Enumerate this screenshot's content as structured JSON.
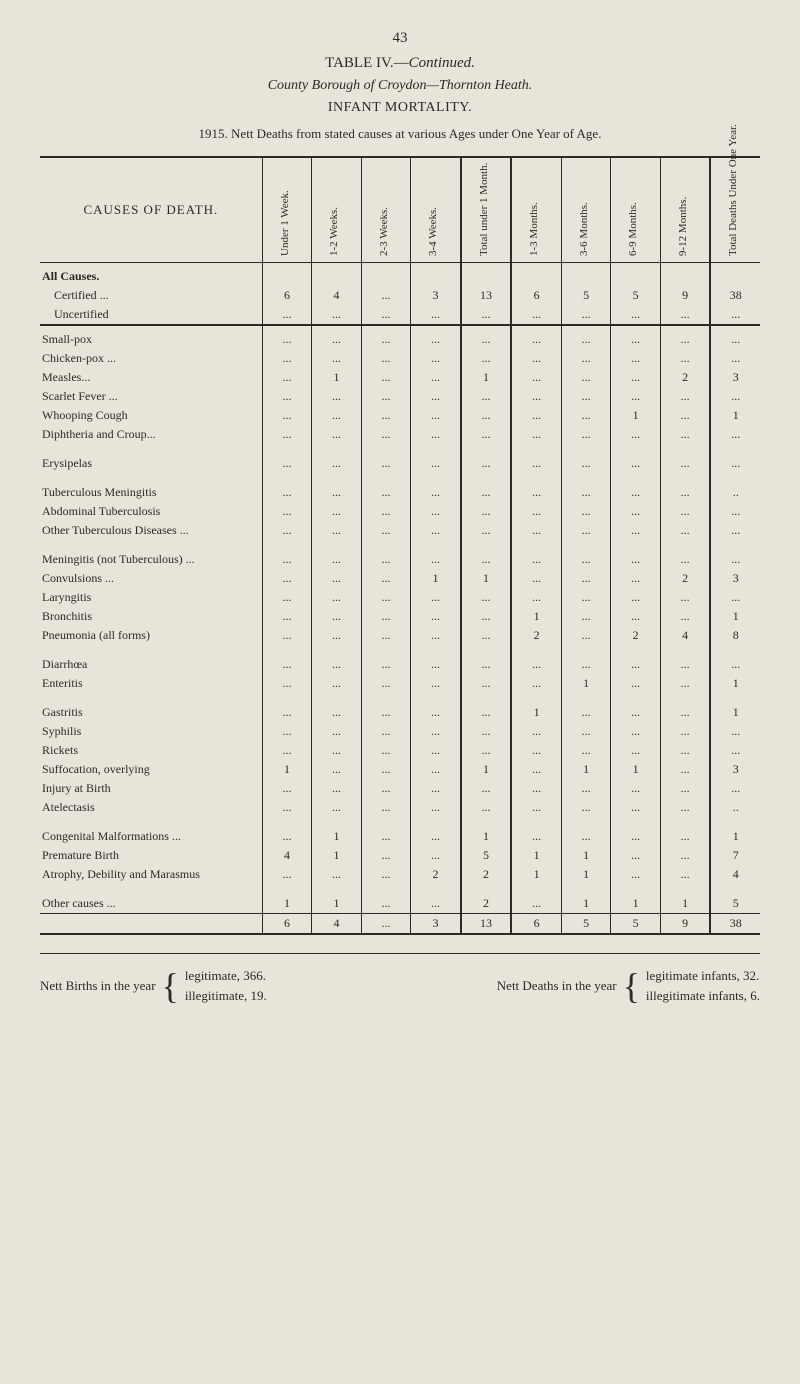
{
  "page_number": "43",
  "table_title_prefix": "TABLE IV.—",
  "table_title_suffix": "Continued.",
  "subtitle_italic": "County Borough of Croydon—Thornton Heath.",
  "subtitle": "INFANT MORTALITY.",
  "year_line": "1915. Nett Deaths from stated causes at various Ages under One Year of Age.",
  "colors": {
    "background": "#e8e4d9",
    "text": "#2a2a28",
    "rule": "#2a2a28"
  },
  "headers": {
    "causes": "CAUSES OF DEATH.",
    "cols": [
      "Under 1 Week.",
      "1-2 Weeks.",
      "2-3 Weeks.",
      "3-4 Weeks.",
      "Total under 1 Month.",
      "1-3 Months.",
      "3-6 Months.",
      "6-9 Months.",
      "9-12 Months.",
      "Total Deaths Under One Year."
    ]
  },
  "rows": [
    {
      "type": "section",
      "label": "All Causes."
    },
    {
      "type": "indent",
      "label": "Certified ...",
      "vals": [
        "6",
        "4",
        "...",
        "3",
        "13",
        "6",
        "5",
        "5",
        "9",
        "38"
      ]
    },
    {
      "type": "indent",
      "label": "Uncertified",
      "vals": [
        "...",
        "...",
        "...",
        "...",
        "...",
        "...",
        "...",
        "...",
        "...",
        "..."
      ]
    },
    {
      "type": "rule",
      "style": "thick"
    },
    {
      "type": "data",
      "label": "Small-pox",
      "vals": [
        "...",
        "...",
        "...",
        "...",
        "...",
        "...",
        "...",
        "...",
        "...",
        "..."
      ]
    },
    {
      "type": "data",
      "label": "Chicken-pox ...",
      "vals": [
        "...",
        "...",
        "...",
        "...",
        "...",
        "...",
        "...",
        "...",
        "...",
        "..."
      ]
    },
    {
      "type": "data",
      "label": "Measles...",
      "vals": [
        "...",
        "1",
        "...",
        "...",
        "1",
        "...",
        "...",
        "...",
        "2",
        "3"
      ]
    },
    {
      "type": "data",
      "label": "Scarlet Fever ...",
      "vals": [
        "...",
        "...",
        "...",
        "...",
        "...",
        "...",
        "...",
        "...",
        "...",
        "..."
      ]
    },
    {
      "type": "data",
      "label": "Whooping Cough",
      "vals": [
        "...",
        "...",
        "...",
        "...",
        "...",
        "...",
        "...",
        "1",
        "...",
        "1"
      ]
    },
    {
      "type": "data",
      "label": "Diphtheria and Croup...",
      "vals": [
        "...",
        "...",
        "...",
        "...",
        "...",
        "...",
        "...",
        "...",
        "...",
        "..."
      ]
    },
    {
      "type": "spacer"
    },
    {
      "type": "data",
      "label": "Erysipelas",
      "vals": [
        "...",
        "...",
        "...",
        "...",
        "...",
        "...",
        "...",
        "...",
        "...",
        "..."
      ]
    },
    {
      "type": "spacer"
    },
    {
      "type": "data",
      "label": "Tuberculous Meningitis",
      "vals": [
        "...",
        "...",
        "...",
        "...",
        "...",
        "...",
        "...",
        "...",
        "...",
        ".."
      ]
    },
    {
      "type": "data",
      "label": "Abdominal Tuberculosis",
      "vals": [
        "...",
        "...",
        "...",
        "...",
        "...",
        "...",
        "...",
        "...",
        "...",
        "..."
      ]
    },
    {
      "type": "data",
      "label": "Other Tuberculous Diseases ...",
      "vals": [
        "...",
        "...",
        "...",
        "...",
        "...",
        "...",
        "...",
        "...",
        "...",
        "..."
      ]
    },
    {
      "type": "spacer"
    },
    {
      "type": "data",
      "label": "Meningitis (not Tuberculous) ...",
      "vals": [
        "...",
        "...",
        "...",
        "...",
        "...",
        "...",
        "...",
        "...",
        "...",
        "..."
      ]
    },
    {
      "type": "data",
      "label": "Convulsions ...",
      "vals": [
        "...",
        "...",
        "...",
        "1",
        "1",
        "...",
        "...",
        "...",
        "2",
        "3"
      ]
    },
    {
      "type": "data",
      "label": "Laryngitis",
      "vals": [
        "...",
        "...",
        "...",
        "...",
        "...",
        "...",
        "...",
        "...",
        "...",
        "..."
      ]
    },
    {
      "type": "data",
      "label": "Bronchitis",
      "vals": [
        "...",
        "...",
        "...",
        "...",
        "...",
        "1",
        "...",
        "...",
        "...",
        "1"
      ]
    },
    {
      "type": "data",
      "label": "Pneumonia (all forms)",
      "vals": [
        "...",
        "...",
        "...",
        "...",
        "...",
        "2",
        "...",
        "2",
        "4",
        "8"
      ]
    },
    {
      "type": "spacer"
    },
    {
      "type": "data",
      "label": "Diarrhœa",
      "vals": [
        "...",
        "...",
        "...",
        "...",
        "...",
        "...",
        "...",
        "...",
        "...",
        "..."
      ]
    },
    {
      "type": "data",
      "label": "Enteritis",
      "vals": [
        "...",
        "...",
        "...",
        "...",
        "...",
        "...",
        "1",
        "...",
        "...",
        "1"
      ]
    },
    {
      "type": "spacer"
    },
    {
      "type": "data",
      "label": "Gastritis",
      "vals": [
        "...",
        "...",
        "...",
        "...",
        "...",
        "1",
        "...",
        "...",
        "...",
        "1"
      ]
    },
    {
      "type": "data",
      "label": "Syphilis",
      "vals": [
        "...",
        "...",
        "...",
        "...",
        "...",
        "...",
        "...",
        "...",
        "...",
        "..."
      ]
    },
    {
      "type": "data",
      "label": "Rickets",
      "vals": [
        "...",
        "...",
        "...",
        "...",
        "...",
        "...",
        "...",
        "...",
        "...",
        "..."
      ]
    },
    {
      "type": "data",
      "label": "Suffocation, overlying",
      "vals": [
        "1",
        "...",
        "...",
        "...",
        "1",
        "...",
        "1",
        "1",
        "...",
        "3"
      ]
    },
    {
      "type": "data",
      "label": "Injury at Birth",
      "vals": [
        "...",
        "...",
        "...",
        "...",
        "...",
        "...",
        "...",
        "...",
        "...",
        "..."
      ]
    },
    {
      "type": "data",
      "label": "Atelectasis",
      "vals": [
        "...",
        "...",
        "...",
        "...",
        "...",
        "...",
        "...",
        "...",
        "...",
        ".."
      ]
    },
    {
      "type": "spacer"
    },
    {
      "type": "data",
      "label": "Congenital Malformations ...",
      "vals": [
        "...",
        "1",
        "...",
        "...",
        "1",
        "...",
        "...",
        "...",
        "...",
        "1"
      ]
    },
    {
      "type": "data",
      "label": "Premature Birth",
      "vals": [
        "4",
        "1",
        "...",
        "...",
        "5",
        "1",
        "1",
        "...",
        "...",
        "7"
      ]
    },
    {
      "type": "data",
      "label": "Atrophy, Debility and Marasmus",
      "vals": [
        "...",
        "...",
        "...",
        "2",
        "2",
        "1",
        "1",
        "...",
        "...",
        "4"
      ]
    },
    {
      "type": "spacer"
    },
    {
      "type": "data",
      "label": "Other causes ...",
      "vals": [
        "1",
        "1",
        "...",
        "...",
        "2",
        "...",
        "1",
        "1",
        "1",
        "5"
      ]
    }
  ],
  "totals_row": {
    "vals": [
      "6",
      "4",
      "...",
      "3",
      "13",
      "6",
      "5",
      "5",
      "9",
      "38"
    ]
  },
  "footer": {
    "left_label": "Nett Births in the year",
    "left_lines": [
      "legitimate, 366.",
      "illegitimate, 19."
    ],
    "right_label": "Nett Deaths in the year",
    "right_lines": [
      "legitimate infants, 32.",
      "illegitimate infants, 6."
    ]
  }
}
